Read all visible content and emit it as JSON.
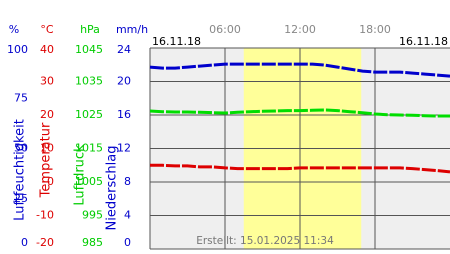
{
  "chart_data": {
    "type": "line",
    "date_start": "16.11.18",
    "date_end": "16.11.18",
    "footer": "Erstellt: 15.01.2025 11:34",
    "xlim": [
      0,
      24
    ],
    "xticks": [
      {
        "value": 6,
        "label": "06:00"
      },
      {
        "value": 12,
        "label": "12:00"
      },
      {
        "value": 18,
        "label": "18:00"
      }
    ],
    "daylight": [
      7.5,
      16.9
    ],
    "grid": true,
    "axes": [
      {
        "unit": "%",
        "label": "Luftfeuchtigkeit",
        "color": "#0000cc",
        "ylim": [
          0,
          100
        ],
        "yticks": [
          0,
          25,
          50,
          75,
          100
        ]
      },
      {
        "unit": "°C",
        "label": "Temperatur",
        "color": "#dd0000",
        "ylim": [
          -20,
          40
        ],
        "yticks": [
          -20,
          -10,
          0,
          10,
          20,
          30,
          40
        ]
      },
      {
        "unit": "hPa",
        "label": "Luftdruck",
        "color": "#00cc00",
        "ylim": [
          985,
          1045
        ],
        "yticks": [
          985,
          995,
          1005,
          1015,
          1025,
          1035,
          1045
        ]
      },
      {
        "unit": "mm/h",
        "label": "Niederschlag",
        "color": "#0000cc",
        "ylim": [
          0,
          24
        ],
        "yticks": [
          0,
          4,
          8,
          12,
          16,
          20,
          24
        ]
      }
    ],
    "x": [
      0,
      1,
      2,
      3,
      4,
      5,
      6,
      7,
      8,
      9,
      10,
      11,
      12,
      13,
      14,
      15,
      16,
      17,
      18,
      19,
      20,
      21,
      22,
      23,
      24
    ],
    "series": [
      {
        "axis": 0,
        "color": "#0000cc",
        "values": [
          90.5,
          90,
          90,
          90.5,
          91,
          91.5,
          92,
          92,
          92,
          92,
          92,
          92,
          92,
          92,
          91.5,
          90.5,
          89.5,
          88.5,
          88,
          88,
          88,
          87.5,
          87,
          86.5,
          86
        ]
      },
      {
        "axis": 1,
        "color": "#dd0000",
        "values": [
          5,
          5,
          4.8,
          4.8,
          4.5,
          4.5,
          4.2,
          4,
          4,
          4,
          4,
          4,
          4.2,
          4.2,
          4.2,
          4.2,
          4.2,
          4.2,
          4.2,
          4.2,
          4.2,
          4,
          3.7,
          3.4,
          3
        ]
      },
      {
        "axis": 2,
        "color": "#00dd00",
        "values": [
          1026.2,
          1026,
          1025.9,
          1025.9,
          1025.8,
          1025.7,
          1025.6,
          1025.8,
          1026,
          1026.1,
          1026.2,
          1026.3,
          1026.3,
          1026.4,
          1026.5,
          1026.3,
          1026,
          1025.7,
          1025.3,
          1025.1,
          1025,
          1024.9,
          1024.8,
          1024.7,
          1024.7
        ]
      }
    ]
  }
}
